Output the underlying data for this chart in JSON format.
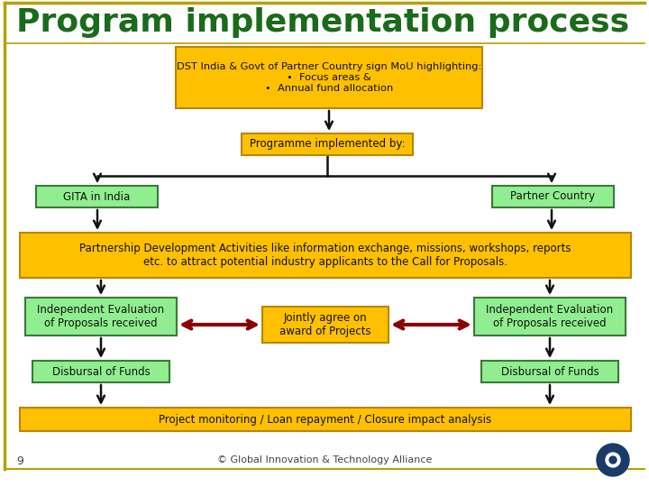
{
  "title": "Program implementation process",
  "title_color": "#1a6b1a",
  "title_fontsize": 26,
  "bg_color": "#ffffff",
  "border_color_gold": "#b8a000",
  "border_color_dark": "#6b6b00",
  "box1_text": "DST India & Govt of Partner Country sign MoU highlighting:\n•  Focus areas &\n•  Annual fund allocation",
  "box1_color": "#FFC000",
  "box1_border": "#b8860b",
  "box2_text": "Programme implemented by:",
  "box2_color": "#FFC000",
  "box2_border": "#b8860b",
  "box3_text": "GITA in India",
  "box3_color": "#90EE90",
  "box3_border": "#3a7a3a",
  "box4_text": "Partner Country",
  "box4_color": "#90EE90",
  "box4_border": "#3a7a3a",
  "box5_text": "Partnership Development Activities like information exchange, missions, workshops, reports\netc. to attract potential industry applicants to the Call for Proposals.",
  "box5_color": "#FFC000",
  "box5_border": "#b8860b",
  "box6_text": "Independent Evaluation\nof Proposals received",
  "box6_color": "#90EE90",
  "box6_border": "#3a7a3a",
  "box7_text": "Jointly agree on\naward of Projects",
  "box7_color": "#FFC000",
  "box7_border": "#b8860b",
  "box8_text": "Independent Evaluation\nof Proposals received",
  "box8_color": "#90EE90",
  "box8_border": "#3a7a3a",
  "box9_text": "Disbursal of Funds",
  "box9_color": "#90EE90",
  "box9_border": "#3a7a3a",
  "box10_text": "Disbursal of Funds",
  "box10_color": "#90EE90",
  "box10_border": "#3a7a3a",
  "box11_text": "Project monitoring / Loan repayment / Closure impact analysis",
  "box11_color": "#FFC000",
  "box11_border": "#b8860b",
  "footer_text": "© Global Innovation & Technology Alliance",
  "page_num": "9",
  "arrow_color": "#111111",
  "red_arrow_color": "#8B0000",
  "text_color": "#111111"
}
